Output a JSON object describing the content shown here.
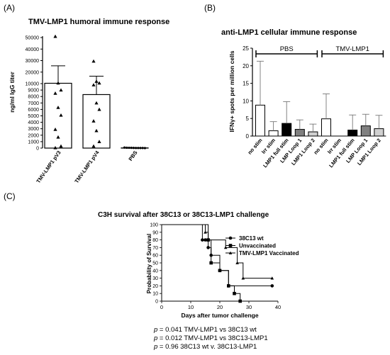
{
  "chart_data": [
    {
      "panel": "(A)",
      "type": "bar",
      "title": "TMV-LMP1 humoral immune response",
      "ylabel": "ng/ml IgG titer",
      "y_axis": "broken",
      "ylim_lower": [
        0,
        10000
      ],
      "ylim_upper": [
        10000,
        50000
      ],
      "yticks": [
        "0",
        "1000",
        "2000",
        "3000",
        "4000",
        "5000",
        "6000",
        "7000",
        "8000",
        "9000",
        "10000",
        "20000",
        "30000",
        "40000",
        "50000"
      ],
      "categories": [
        "TMV-LMP1 pV3",
        "TMV-LMP1 pV4",
        "PBS"
      ],
      "bar_means": [
        10300,
        8300,
        30
      ],
      "error_upper": [
        25500,
        16500,
        60
      ],
      "error_lower": [
        0,
        0,
        0
      ],
      "points": [
        [
          51000,
          10500,
          9000,
          8500,
          6300,
          5100,
          2900,
          1700,
          300,
          50
        ],
        [
          29500,
          12000,
          10500,
          9800,
          7000,
          6000,
          4200,
          2700,
          1000,
          300
        ],
        [
          80,
          60,
          50,
          40,
          30,
          20,
          20,
          10,
          10,
          0
        ]
      ],
      "markers": [
        "triangle",
        "triangle",
        "circle"
      ]
    },
    {
      "panel": "(B)",
      "type": "bar",
      "title": "anti-LMP1 cellular immune response",
      "ylabel": "IFNγ+ spots per million cells",
      "ylim": [
        0,
        25
      ],
      "yticks": [
        "0",
        "5",
        "10",
        "15",
        "20",
        "25"
      ],
      "groups": [
        "PBS",
        "TMV-LMP1"
      ],
      "categories": [
        "no stim",
        "Irr stim",
        "LMP1 full stim",
        "LMP Loop 1",
        "LMP1 Loop 2",
        "no stim",
        "Irr stim",
        "LMP1 full stim",
        "LMP Loop 1",
        "LMP1 Loop 2"
      ],
      "values": [
        8.8,
        1.5,
        3.6,
        1.9,
        1.2,
        4.9,
        0,
        1.7,
        2.9,
        2.1
      ],
      "error_upper": [
        21.3,
        4.1,
        9.8,
        4.6,
        3.4,
        12.0,
        0,
        6.0,
        6.2,
        5.9
      ],
      "fills": [
        "#ffffff",
        "#ffffff",
        "#000000",
        "#808080",
        "#d0d0d0",
        "#ffffff",
        "#ffffff",
        "#000000",
        "#808080",
        "#d0d0d0"
      ]
    },
    {
      "panel": "(C)",
      "type": "line",
      "title": "C3H survival after 38C13 or 38C13-LMP1 challenge",
      "xlabel": "Days after tumor challenge",
      "ylabel": "Probability of Survival",
      "xlim": [
        0,
        40
      ],
      "ylim": [
        0,
        100
      ],
      "xticks": [
        "0",
        "10",
        "20",
        "30",
        "40"
      ],
      "yticks": [
        "0",
        "10",
        "20",
        "30",
        "40",
        "50",
        "60",
        "70",
        "80",
        "90",
        "100"
      ],
      "series": [
        {
          "name": "38C13 wt",
          "marker": "circle",
          "x": [
            0,
            14,
            15,
            16,
            17,
            20,
            23,
            38
          ],
          "y": [
            100,
            80,
            80,
            70,
            60,
            40,
            20,
            20
          ]
        },
        {
          "name": "Unvaccinated",
          "marker": "square",
          "x": [
            0,
            16,
            17,
            20,
            23,
            25,
            27
          ],
          "y": [
            100,
            80,
            50,
            40,
            20,
            10,
            0
          ]
        },
        {
          "name": "TMV-LMP1 Vaccinated",
          "marker": "triangle",
          "x": [
            0,
            15,
            16,
            22,
            26,
            28,
            38
          ],
          "y": [
            100,
            90,
            80,
            70,
            50,
            30,
            30
          ]
        }
      ],
      "annotations": [
        {
          "p": "p",
          "text": " = 0.041 TMV-LMP1 vs 38C13 wt"
        },
        {
          "p": "p",
          "text": " = 0.012 TMV-LMP1 vs 38C13-LMP1"
        },
        {
          "p": "p",
          "text": " = 0.96   38C13 wt v. 38C13-LMP1"
        }
      ]
    }
  ]
}
